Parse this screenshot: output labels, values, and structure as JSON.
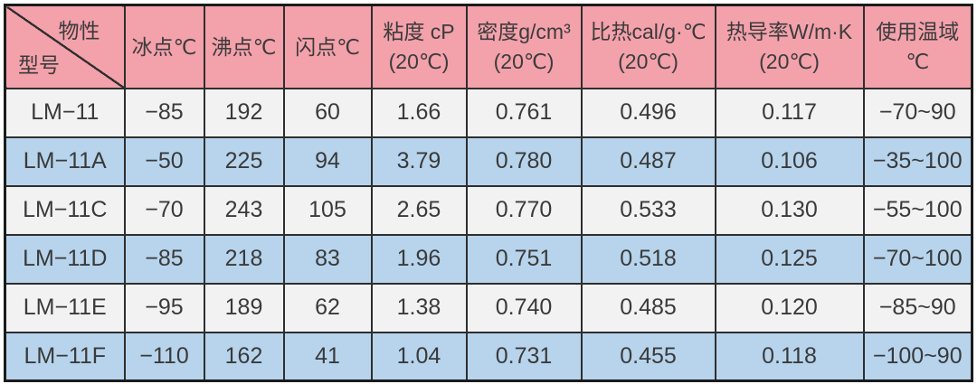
{
  "colors": {
    "header_bg": "#f3a1ab",
    "row_light_bg": "#f2f2f2",
    "row_blue_bg": "#b7d4ec",
    "grid_line": "#2e2e2e",
    "text": "#3a3a3a"
  },
  "table": {
    "corner": {
      "property_label": "物性",
      "model_label": "型号"
    },
    "headers": [
      {
        "line1": "冰点℃",
        "line2": ""
      },
      {
        "line1": "沸点℃",
        "line2": ""
      },
      {
        "line1": "闪点℃",
        "line2": ""
      },
      {
        "line1": "粘度 cP",
        "line2": "(20℃)"
      },
      {
        "line1": "密度g/cm³",
        "line2": "(20℃)"
      },
      {
        "line1": "比热cal/g·℃",
        "line2": "(20℃)"
      },
      {
        "line1": "热导率W/m·K",
        "line2": "(20℃)"
      },
      {
        "line1": "使用温域",
        "line2": "℃"
      }
    ],
    "rows": [
      {
        "model": "LM−11",
        "values": [
          "−85",
          "192",
          "60",
          "1.66",
          "0.761",
          "0.496",
          "0.117",
          "−70~90"
        ]
      },
      {
        "model": "LM−11A",
        "values": [
          "−50",
          "225",
          "94",
          "3.79",
          "0.780",
          "0.487",
          "0.106",
          "−35~100"
        ]
      },
      {
        "model": "LM−11C",
        "values": [
          "−70",
          "243",
          "105",
          "2.65",
          "0.770",
          "0.533",
          "0.130",
          "−55~100"
        ]
      },
      {
        "model": "LM−11D",
        "values": [
          "−85",
          "218",
          "83",
          "1.96",
          "0.751",
          "0.518",
          "0.125",
          "−70~100"
        ]
      },
      {
        "model": "LM−11E",
        "values": [
          "−95",
          "189",
          "62",
          "1.38",
          "0.740",
          "0.485",
          "0.120",
          "−85~90"
        ]
      },
      {
        "model": "LM−11F",
        "values": [
          "−110",
          "162",
          "41",
          "1.04",
          "0.731",
          "0.455",
          "0.118",
          "−100~90"
        ]
      }
    ]
  }
}
